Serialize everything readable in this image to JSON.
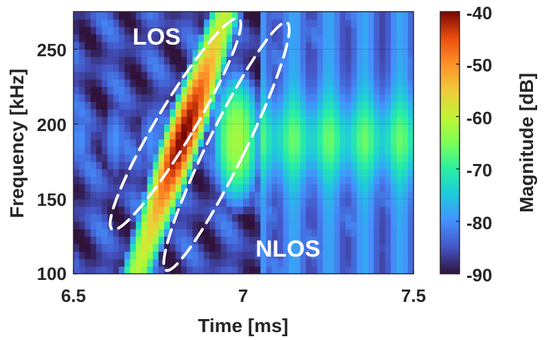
{
  "chart_data": {
    "type": "heatmap",
    "title": "",
    "xlabel": "Time [ms]",
    "ylabel": "Frequency [kHz]",
    "xlim": [
      6.5,
      7.5
    ],
    "ylim": [
      100,
      275
    ],
    "xticks": [
      6.5,
      7,
      7.5
    ],
    "xtick_labels": [
      "6.5",
      "7",
      "7.5"
    ],
    "yticks": [
      100,
      150,
      200,
      250
    ],
    "ytick_labels": [
      "100",
      "150",
      "200",
      "250"
    ],
    "grid": true,
    "colorbar": {
      "label": "Magnitude [dB]",
      "range": [
        -90,
        -40
      ],
      "ticks": [
        -90,
        -80,
        -70,
        -60,
        -50,
        -40
      ],
      "tick_labels": [
        "-90",
        "-80",
        "-70",
        "-60",
        "-50",
        "-40"
      ],
      "colormap": "turbo"
    },
    "features": [
      {
        "name": "LOS peak",
        "t_ms": 6.82,
        "f_khz": 190,
        "magnitude_db": -40
      },
      {
        "name": "LOS ridge upper",
        "t_ms": 6.88,
        "f_khz": 240,
        "magnitude_db": -55
      },
      {
        "name": "LOS ridge lower",
        "t_ms": 6.72,
        "f_khz": 140,
        "magnitude_db": -58
      },
      {
        "name": "NLOS region",
        "t_ms": 6.98,
        "f_khz": 190,
        "magnitude_db": -62
      },
      {
        "name": "late band",
        "t_ms": 7.3,
        "f_khz": 190,
        "magnitude_db": -70
      }
    ],
    "annotations": [
      {
        "text": "LOS",
        "ellipse": {
          "t_ms": 6.8,
          "f_khz": 200,
          "rx_ms": 0.055,
          "ry_khz": 82,
          "angle_deg": 31
        }
      },
      {
        "text": "NLOS",
        "ellipse": {
          "t_ms": 6.95,
          "f_khz": 185,
          "rx_ms": 0.055,
          "ry_khz": 92,
          "angle_deg": 26
        }
      }
    ]
  }
}
